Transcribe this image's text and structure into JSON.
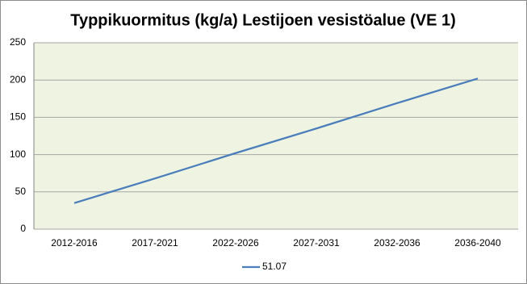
{
  "chart_data": {
    "type": "line",
    "title": "Typpikuormitus (kg/a) Lestijoen vesistöalue (VE 1)",
    "categories": [
      "2012-2016",
      "2017-2021",
      "2022-2026",
      "2027-2031",
      "2032-2036",
      "2036-2040"
    ],
    "series": [
      {
        "name": "51.07",
        "color": "#4a7ebb",
        "values": [
          35,
          68,
          102,
          135,
          169,
          202
        ]
      }
    ],
    "ylim": [
      0,
      250
    ],
    "yticks": [
      0,
      50,
      100,
      150,
      200,
      250
    ],
    "grid": true,
    "legend": "bottom"
  }
}
